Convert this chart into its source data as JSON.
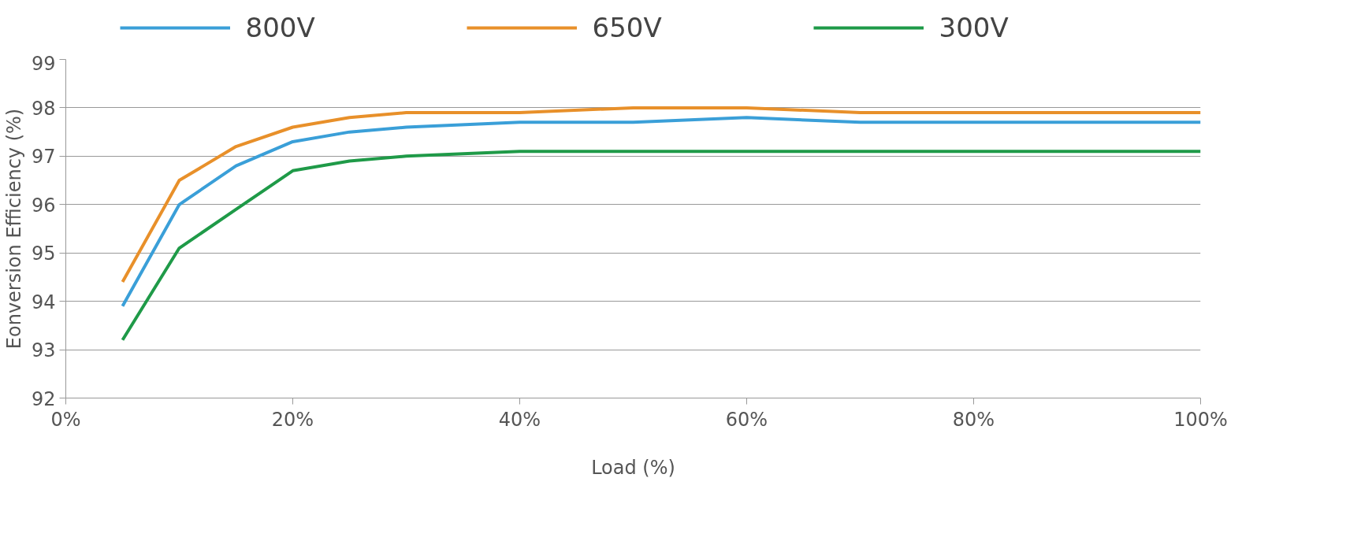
{
  "chart_data": {
    "type": "line",
    "xlabel": "Load (%)",
    "ylabel": "Eonversion Efficiency (%)",
    "x": [
      5,
      10,
      15,
      20,
      25,
      30,
      40,
      50,
      60,
      70,
      80,
      90,
      100
    ],
    "series": [
      {
        "name": "800V",
        "color": "#3a9fd8",
        "values": [
          93.9,
          96.0,
          96.8,
          97.3,
          97.5,
          97.6,
          97.7,
          97.7,
          97.8,
          97.7,
          97.7,
          97.7,
          97.7
        ]
      },
      {
        "name": "650V",
        "color": "#e8902a",
        "values": [
          94.4,
          96.5,
          97.2,
          97.6,
          97.8,
          97.9,
          97.9,
          98.0,
          98.0,
          97.9,
          97.9,
          97.9,
          97.9
        ]
      },
      {
        "name": "300V",
        "color": "#1f9a48",
        "values": [
          93.2,
          95.1,
          95.9,
          96.7,
          96.9,
          97.0,
          97.1,
          97.1,
          97.1,
          97.1,
          97.1,
          97.1,
          97.1
        ]
      }
    ],
    "xlim": [
      0,
      100
    ],
    "ylim": [
      92,
      99
    ],
    "xticks": [
      {
        "value": 0,
        "label": "0%"
      },
      {
        "value": 20,
        "label": "20%"
      },
      {
        "value": 40,
        "label": "40%"
      },
      {
        "value": 60,
        "label": "60%"
      },
      {
        "value": 80,
        "label": "80%"
      },
      {
        "value": 100,
        "label": "100%"
      }
    ],
    "yticks": [
      92,
      93,
      94,
      95,
      96,
      97,
      98,
      99
    ],
    "grid": "y",
    "legend": "top",
    "marker": "none",
    "line_style": "solid"
  }
}
